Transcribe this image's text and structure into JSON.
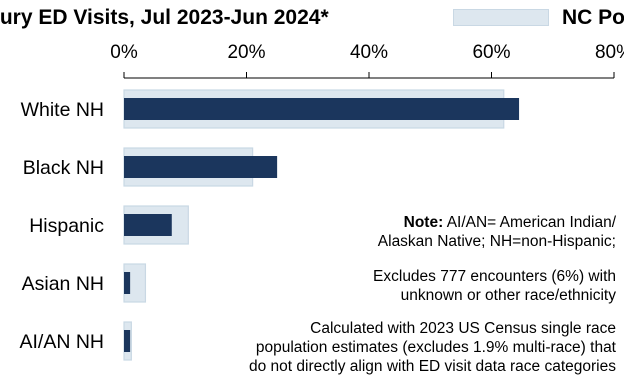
{
  "chart_data": {
    "type": "bar",
    "title": "jury ED Visits, Jul 2023-Jun 2024*",
    "legend_label": "NC Po",
    "categories": [
      "White NH",
      "Black NH",
      "Hispanic",
      "Asian NH",
      "AI/AN NH"
    ],
    "series": [
      {
        "name": "NC Po",
        "role": "population",
        "values": [
          62,
          21,
          10.5,
          3.5,
          1.2
        ],
        "color": "#dde7ef"
      },
      {
        "name": "",
        "role": "visits",
        "values": [
          64.5,
          25,
          7.8,
          1.0,
          1.0
        ],
        "color": "#1b365d"
      }
    ],
    "x_ticks": [
      "0%",
      "20%",
      "40%",
      "60%",
      "80%"
    ],
    "xlim": [
      0,
      80
    ],
    "grid": false,
    "legend_position": "top-right"
  },
  "notes": {
    "note_bold": "Note:",
    "note_line1": " AI/AN= American Indian/",
    "note_line2": "Alaskan Native; NH=non-Hispanic;",
    "excl_line1": "Excludes 777 encounters (6%) with",
    "excl_line2": "unknown or other race/ethnicity",
    "calc_line1": "Calculated with 2023 US Census single race",
    "calc_line2": "population estimates (excludes 1.9% multi-race) that",
    "calc_line3": "do not directly align with ED visit data race categories"
  }
}
